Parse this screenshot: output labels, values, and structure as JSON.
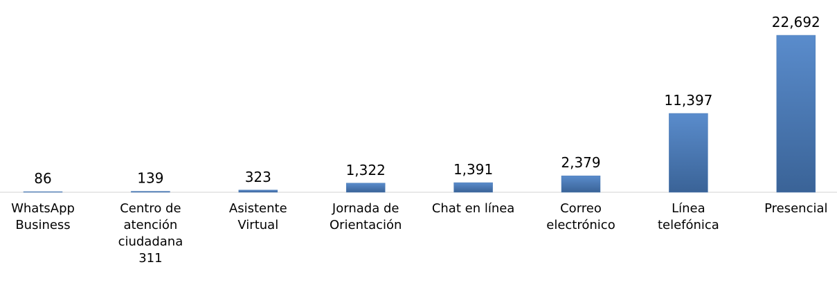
{
  "chart_data": {
    "type": "bar",
    "categories": [
      "WhatsApp Business",
      "Centro de atención ciudadana 311",
      "Asistente Virtual",
      "Jornada de Orientación",
      "Chat en línea",
      "Correo electrónico",
      "Línea telefónica",
      "Presencial"
    ],
    "values": [
      86,
      139,
      323,
      1322,
      1391,
      2379,
      11397,
      22692
    ],
    "value_labels": [
      "86",
      "139",
      "323",
      "1,322",
      "1,391",
      "2,379",
      "11,397",
      "22,692"
    ],
    "color": "#4a7ab5"
  }
}
